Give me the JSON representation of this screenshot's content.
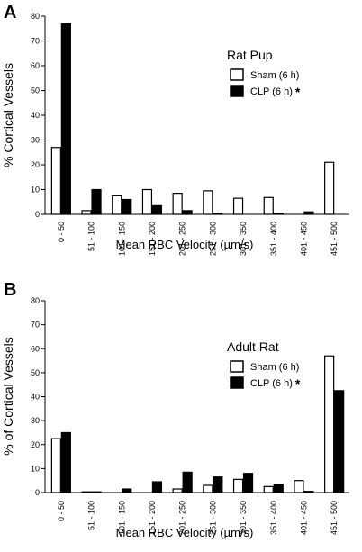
{
  "chart_data": [
    {
      "panel": "A",
      "type": "bar",
      "legend_title": "Rat Pup",
      "ylabel": "% Cortical  Vessels",
      "xlabel": "Mean RBC Velocity (µm/s)",
      "ylim": [
        0,
        80
      ],
      "yticks": [
        0,
        10,
        20,
        30,
        40,
        50,
        60,
        70,
        80
      ],
      "categories": [
        "0 - 50",
        "51 - 100",
        "101 - 150",
        "151 - 200",
        "201 - 250",
        "251 - 300",
        "301 - 350",
        "351 - 400",
        "401 - 450",
        "451 - 500"
      ],
      "series": [
        {
          "name": "Sham (6 h)",
          "style": "open",
          "values": [
            27,
            1.5,
            7.5,
            10,
            8.5,
            9.5,
            6.5,
            6.8,
            0,
            21
          ]
        },
        {
          "name": "CLP (6 h)",
          "style": "filled",
          "significance": "*",
          "values": [
            77,
            10,
            6,
            3.5,
            1.5,
            0.5,
            0,
            0.5,
            1,
            0
          ]
        }
      ],
      "legend_position": "top-right",
      "grid": false
    },
    {
      "panel": "B",
      "type": "bar",
      "legend_title": "Adult  Rat",
      "ylabel": "% of Cortical  Vessels",
      "xlabel": "Mean RBC Velocity (µm/s)",
      "ylim": [
        0,
        80
      ],
      "yticks": [
        0,
        10,
        20,
        30,
        40,
        50,
        60,
        70,
        80
      ],
      "categories": [
        "0 - 50",
        "51 - 100",
        "101 - 150",
        "151 - 200",
        "201 - 250",
        "251 - 300",
        "301 - 350",
        "351 - 400",
        "401 - 450",
        "451 - 500"
      ],
      "series": [
        {
          "name": "Sham (6 h)",
          "style": "open",
          "values": [
            22.5,
            0.3,
            0,
            0,
            1.5,
            3,
            5.5,
            2.5,
            5,
            57
          ]
        },
        {
          "name": "CLP (6 h)",
          "style": "filled",
          "significance": "*",
          "values": [
            25,
            0.3,
            1.5,
            4.5,
            8.5,
            6.5,
            8,
            3.5,
            0.5,
            42.5
          ]
        }
      ],
      "legend_position": "top-right",
      "grid": false
    }
  ]
}
